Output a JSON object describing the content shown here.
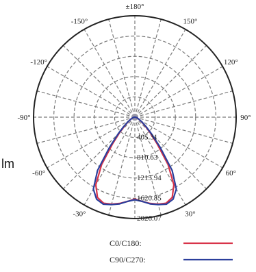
{
  "chart_data": {
    "type": "polar",
    "angle_labels": [
      "±180°",
      "150°",
      "120°",
      "90°",
      "60°",
      "30°",
      "-30°",
      "-60°",
      "-90°",
      "-120°",
      "-150°"
    ],
    "angle_values": [
      180,
      150,
      120,
      90,
      60,
      30,
      -30,
      -60,
      -90,
      -120,
      -150
    ],
    "radial_tick_labels": [
      "405.31",
      "810.63",
      "1215.94",
      "1620.85",
      "2026.07"
    ],
    "radial_max": 2026.07,
    "radial_rings": 5,
    "angular_grid_step_deg": 15,
    "unit_label": "lm",
    "legend": [
      {
        "label": "C0/C180:",
        "color": "#d8344a"
      },
      {
        "label": "C90/C270:",
        "color": "#2b3f9c"
      }
    ],
    "series": [
      {
        "name": "C0/C180",
        "color": "#d8344a",
        "angles": [
          0,
          5,
          10,
          15,
          20,
          25,
          30,
          35,
          40,
          45,
          50,
          55,
          60,
          65,
          70,
          75,
          80,
          85,
          90
        ],
        "values": [
          1635,
          1690,
          1750,
          1800,
          1830,
          1770,
          1560,
          1160,
          690,
          420,
          260,
          165,
          110,
          75,
          50,
          35,
          22,
          12,
          0
        ]
      },
      {
        "name": "C90/C270",
        "color": "#2b3f9c",
        "angles": [
          0,
          5,
          10,
          15,
          20,
          25,
          30,
          35,
          40,
          45,
          50,
          55,
          60,
          65,
          70,
          75,
          80,
          85,
          90
        ],
        "values": [
          1650,
          1690,
          1760,
          1810,
          1850,
          1810,
          1660,
          1300,
          790,
          470,
          290,
          180,
          115,
          80,
          55,
          38,
          24,
          14,
          0
        ]
      }
    ]
  }
}
